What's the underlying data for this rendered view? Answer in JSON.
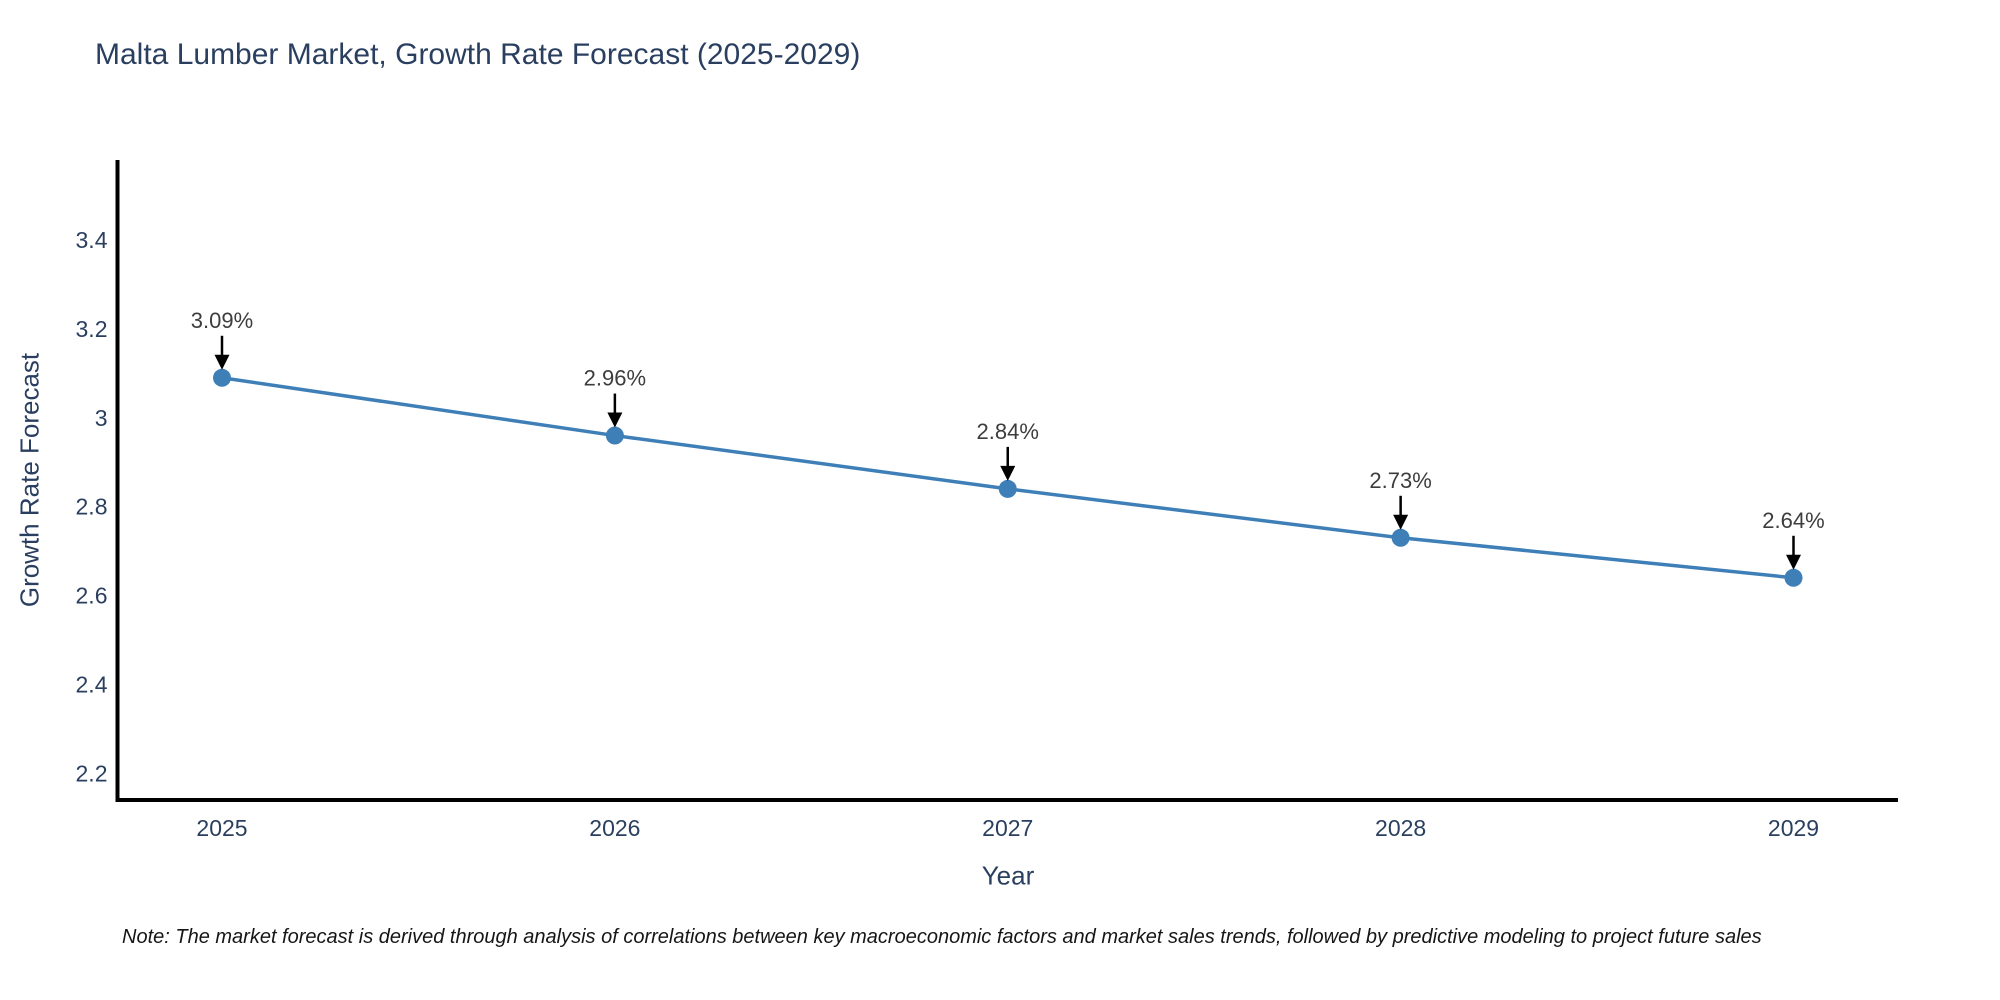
{
  "title": "Malta Lumber Market, Growth Rate Forecast (2025-2029)",
  "note": "Note: The market forecast is derived through analysis of correlations between key macroeconomic factors and market sales trends, followed by predictive modeling to project future sales",
  "chart_data": {
    "type": "line",
    "title": "Malta Lumber Market, Growth Rate Forecast (2025-2029)",
    "xlabel": "Year",
    "ylabel": "Growth Rate Forecast",
    "x": [
      "2025",
      "2026",
      "2027",
      "2028",
      "2029"
    ],
    "values": [
      3.09,
      2.96,
      2.84,
      2.73,
      2.64
    ],
    "point_labels": [
      "3.09%",
      "2.96%",
      "2.84%",
      "2.73%",
      "2.64%"
    ],
    "yticks": [
      2.2,
      2.4,
      2.6,
      2.8,
      3.0,
      3.2,
      3.4
    ],
    "ytick_labels": [
      "2.2",
      "2.4",
      "2.6",
      "2.8",
      "3",
      "3.2",
      "3.4"
    ],
    "ylim": [
      2.14,
      3.58
    ],
    "grid": false,
    "legend": null,
    "colors": {
      "line": "#3f7fb8",
      "marker": "#3f7fb8",
      "axis": "#000000",
      "tick_label": "#2a3f5f",
      "annotation_text": "#3d3d3d",
      "annotation_arrow": "#000000"
    }
  }
}
